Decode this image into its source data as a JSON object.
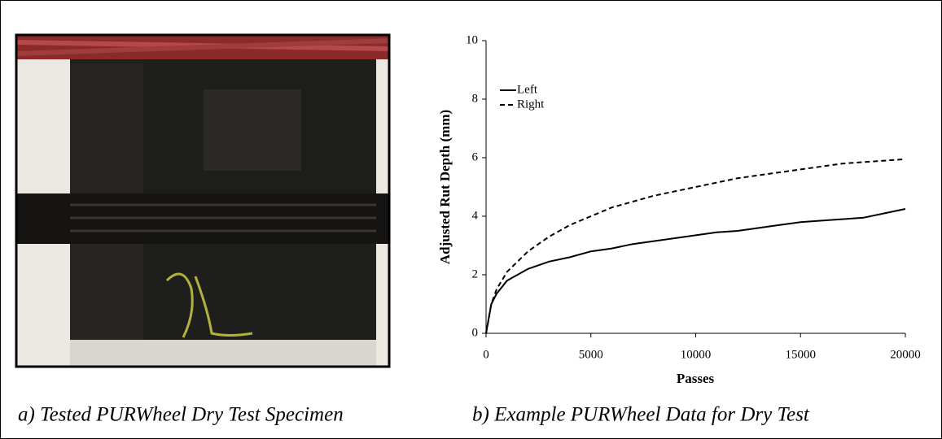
{
  "chart_data": {
    "type": "line",
    "x_label": "Passes",
    "y_label": "Adjusted Rut Depth (mm)",
    "x": [
      0,
      250,
      500,
      1000,
      2000,
      3000,
      4000,
      5000,
      6000,
      7000,
      8000,
      9000,
      10000,
      11000,
      12000,
      13000,
      14000,
      15000,
      16000,
      17000,
      18000,
      19000,
      20000
    ],
    "series": [
      {
        "name": "Left",
        "color": "#000000",
        "line_style": "solid",
        "values": [
          0,
          1.0,
          1.35,
          1.8,
          2.2,
          2.45,
          2.6,
          2.8,
          2.9,
          3.05,
          3.15,
          3.25,
          3.35,
          3.45,
          3.5,
          3.6,
          3.7,
          3.8,
          3.85,
          3.9,
          3.95,
          4.1,
          4.25
        ]
      },
      {
        "name": "Right",
        "color": "#000000",
        "line_style": "dashed",
        "values": [
          0,
          1.0,
          1.5,
          2.1,
          2.8,
          3.3,
          3.7,
          4.0,
          4.3,
          4.5,
          4.7,
          4.85,
          5.0,
          5.15,
          5.3,
          5.4,
          5.5,
          5.6,
          5.7,
          5.8,
          5.85,
          5.9,
          5.95
        ]
      }
    ],
    "xlim": [
      0,
      20000
    ],
    "xticks": [
      0,
      5000,
      10000,
      15000,
      20000
    ],
    "ylim": [
      0,
      10
    ],
    "yticks": [
      0,
      2,
      4,
      6,
      8,
      10
    ],
    "grid": false,
    "legend": "upper-left"
  },
  "captions": [
    "a)  Tested PURWheel Dry Test Specimen",
    "b)  Example PURWheel Data for Dry Test"
  ]
}
